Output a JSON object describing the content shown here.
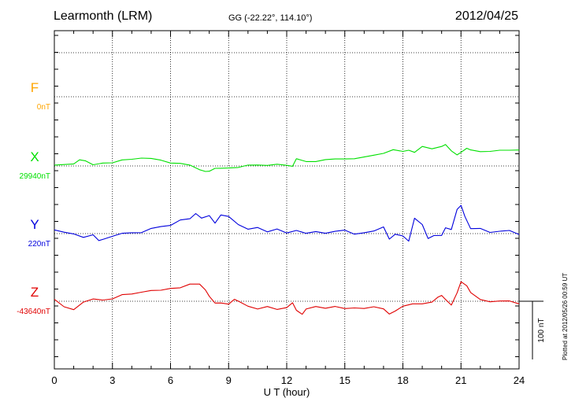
{
  "header": {
    "title": "Learmonth (LRM)",
    "coords": "GG (-22.22°, 114.10°)",
    "date": "2012/04/25"
  },
  "plotted_note": "Plotted at 2012/05/26 00:59 UT",
  "chart_data": {
    "type": "line",
    "xlabel": "U T (hour)",
    "xlim": [
      0,
      24
    ],
    "xticks": [
      "0",
      "3",
      "6",
      "9",
      "12",
      "15",
      "18",
      "21",
      "24"
    ],
    "grid": true,
    "scale_bar": {
      "label": "100 nT",
      "value_nT": 100
    },
    "channels": [
      {
        "key": "F",
        "name": "F",
        "baseline_label": "0nT",
        "baseline_nT": 0,
        "color": "#ffa500",
        "data": []
      },
      {
        "key": "X",
        "name": "X",
        "baseline_label": "29940nT",
        "baseline_nT": 29940,
        "color": "#00e000",
        "x": [
          0,
          0.5,
          1,
          1.3,
          1.6,
          2,
          2.5,
          3,
          3.5,
          4,
          4.5,
          5,
          5.5,
          6,
          6.5,
          7,
          7.5,
          7.8,
          8,
          8.3,
          8.6,
          9,
          9.5,
          10,
          10.5,
          11,
          11.5,
          12,
          12.3,
          12.5,
          13,
          13.5,
          14,
          14.5,
          15,
          15.5,
          16,
          16.5,
          17,
          17.5,
          18,
          18.3,
          18.6,
          19,
          19.5,
          20,
          20.2,
          20.5,
          20.8,
          21,
          21.3,
          21.5,
          22,
          22.5,
          23,
          23.5,
          24
        ],
        "y": [
          0,
          2,
          4,
          12,
          8,
          2,
          6,
          4,
          10,
          12,
          15,
          12,
          10,
          6,
          3,
          1,
          -6,
          -8,
          -10,
          -4,
          -3,
          -5,
          -3,
          2,
          3,
          0,
          3,
          2,
          -2,
          12,
          8,
          9,
          10,
          12,
          13,
          11,
          15,
          19,
          23,
          27,
          25,
          28,
          22,
          33,
          30,
          35,
          36,
          26,
          20,
          22,
          30,
          28,
          26,
          24,
          27,
          28,
          26
        ]
      },
      {
        "key": "Y",
        "name": "Y",
        "baseline_label": "220nT",
        "baseline_nT": 220,
        "color": "#0000dd",
        "x": [
          0,
          0.5,
          1,
          1.5,
          2,
          2.3,
          2.6,
          3,
          3.5,
          4,
          4.5,
          5,
          5.5,
          6,
          6.5,
          7,
          7.3,
          7.6,
          8,
          8.3,
          8.6,
          9,
          9.5,
          10,
          10.5,
          11,
          11.5,
          12,
          12.5,
          13,
          13.5,
          14,
          14.5,
          15,
          15.5,
          16,
          16.5,
          17,
          17.3,
          17.6,
          18,
          18.3,
          18.6,
          19,
          19.3,
          19.6,
          20,
          20.2,
          20.5,
          20.8,
          21,
          21.2,
          21.5,
          22,
          22.5,
          23,
          23.5,
          24
        ],
        "y": [
          5,
          2,
          0,
          -5,
          -3,
          -12,
          -8,
          -6,
          0,
          2,
          3,
          8,
          12,
          15,
          22,
          25,
          35,
          28,
          30,
          18,
          33,
          28,
          15,
          8,
          12,
          2,
          8,
          2,
          4,
          0,
          4,
          2,
          3,
          6,
          0,
          0,
          4,
          12,
          -8,
          -2,
          -4,
          -12,
          25,
          15,
          -8,
          -2,
          -4,
          10,
          8,
          40,
          48,
          30,
          10,
          8,
          2,
          5,
          4,
          -2
        ]
      },
      {
        "key": "Z",
        "name": "Z",
        "baseline_label": "-43640nT",
        "baseline_nT": -43640,
        "color": "#e00000",
        "x": [
          0,
          0.5,
          1,
          1.5,
          2,
          2.5,
          3,
          3.5,
          4,
          4.5,
          5,
          5.5,
          6,
          6.5,
          7,
          7.5,
          7.8,
          8,
          8.3,
          8.6,
          9,
          9.3,
          9.6,
          10,
          10.5,
          11,
          11.5,
          12,
          12.3,
          12.5,
          12.8,
          13,
          13.5,
          14,
          14.5,
          15,
          15.5,
          16,
          16.5,
          17,
          17.3,
          17.6,
          18,
          18.5,
          19,
          19.5,
          19.8,
          20,
          20.2,
          20.5,
          20.8,
          21,
          21.3,
          21.5,
          22,
          22.5,
          23,
          23.5,
          24
        ],
        "y": [
          2,
          -10,
          -14,
          0,
          3,
          2,
          5,
          10,
          12,
          16,
          20,
          18,
          22,
          24,
          28,
          29,
          20,
          10,
          -4,
          -3,
          -4,
          2,
          -2,
          -8,
          -12,
          -10,
          -14,
          -10,
          -4,
          -16,
          -22,
          -12,
          -10,
          -12,
          -8,
          -14,
          -12,
          -12,
          -8,
          -14,
          -22,
          -16,
          -10,
          -5,
          -4,
          0,
          6,
          10,
          4,
          -8,
          14,
          34,
          28,
          14,
          3,
          0,
          -1,
          0,
          -4
        ]
      }
    ]
  }
}
